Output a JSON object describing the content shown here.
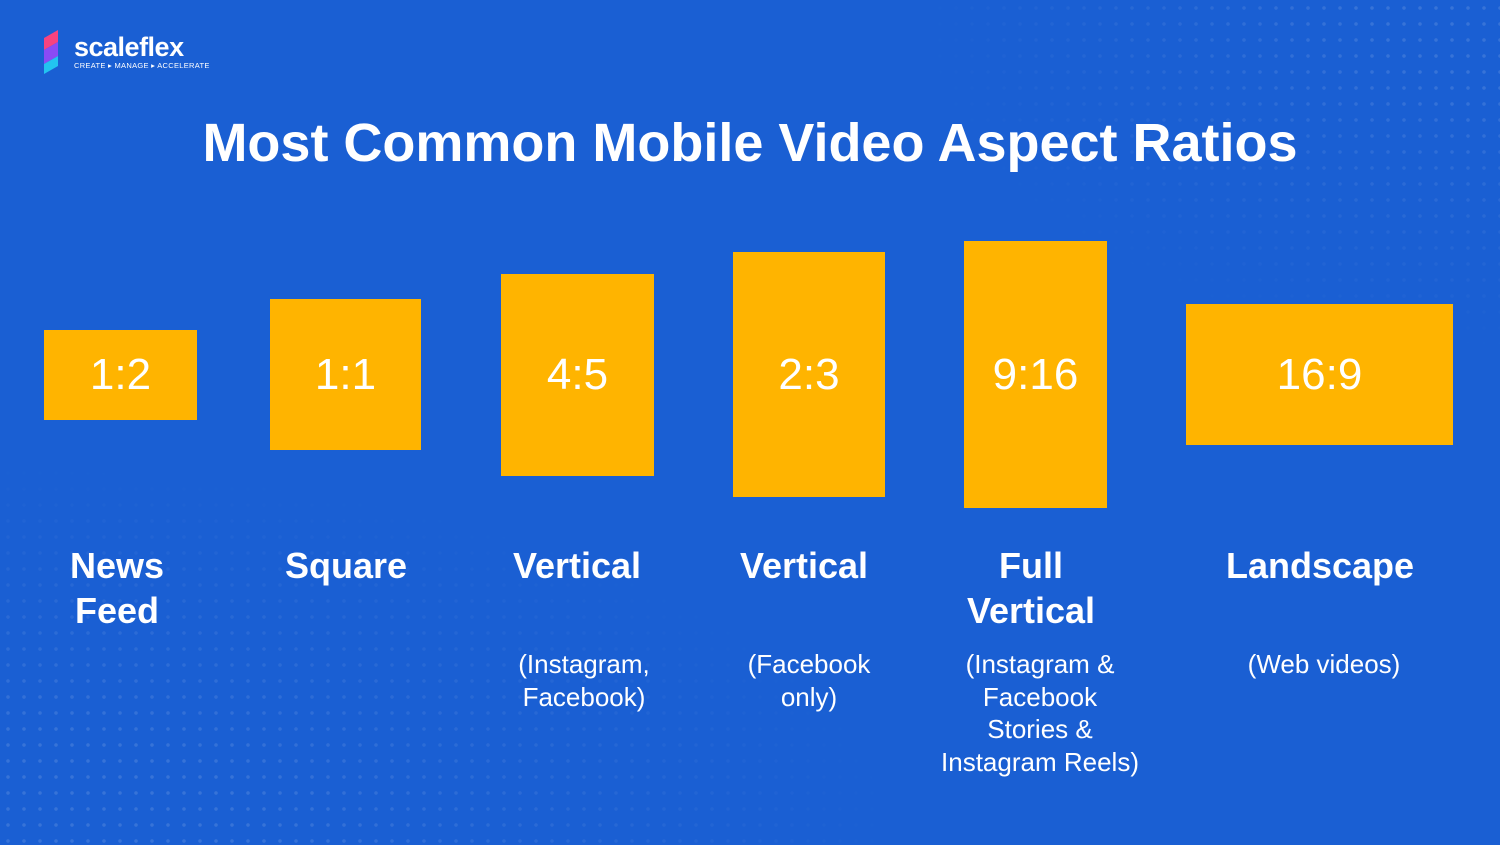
{
  "brand": {
    "name": "scaleflex",
    "tagline": "CREATE ▸ MANAGE ▸ ACCELERATE",
    "icon": "scaleflex-s-logo",
    "colors": [
      "#f7437f",
      "#8a4bf5",
      "#22c4f0"
    ]
  },
  "title": "Most Common Mobile Video Aspect Ratios",
  "colors": {
    "background": "#1a5fd3",
    "box_fill": "#ffb400",
    "text": "#ffffff"
  },
  "formats": [
    {
      "ratio": "1:2",
      "label_line1": "News",
      "label_line2": "Feed",
      "sub_lines": []
    },
    {
      "ratio": "1:1",
      "label_line1": "Square",
      "label_line2": "",
      "sub_lines": []
    },
    {
      "ratio": "4:5",
      "label_line1": "Vertical",
      "label_line2": "",
      "sub_lines": [
        "(Instagram,",
        "Facebook)"
      ]
    },
    {
      "ratio": "2:3",
      "label_line1": "Vertical",
      "label_line2": "",
      "sub_lines": [
        "(Facebook",
        "only)"
      ]
    },
    {
      "ratio": "9:16",
      "label_line1": "Full",
      "label_line2": "Vertical",
      "sub_lines": [
        "(Instagram &",
        "Facebook",
        "Stories &",
        "Instagram Reels)"
      ]
    },
    {
      "ratio": "16:9",
      "label_line1": "Landscape",
      "label_line2": "",
      "sub_lines": [
        "(Web videos)"
      ]
    }
  ]
}
